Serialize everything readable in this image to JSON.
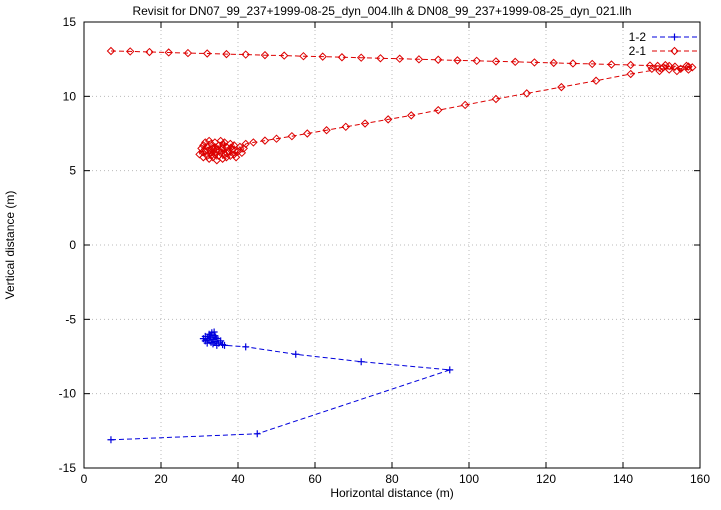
{
  "chart_data": {
    "type": "scatter",
    "title": "Revisit for DN07_99_237+1999-08-25_dyn_004.llh & DN08_99_237+1999-08-25_dyn_021.llh",
    "xlabel": "Horizontal distance (m)",
    "ylabel": "Vertical distance (m)",
    "xlim": [
      0,
      160
    ],
    "ylim": [
      -15,
      15
    ],
    "xticks": [
      0,
      20,
      40,
      60,
      80,
      100,
      120,
      140,
      160
    ],
    "yticks": [
      -15,
      -10,
      -5,
      0,
      5,
      10,
      15
    ],
    "grid": true,
    "grid_color": "#bbbbbb",
    "border_color": "#000000",
    "legend_position": "top-right",
    "series": [
      {
        "name": "1-2",
        "color": "#0000dd",
        "marker": "plus",
        "line_style": "dashed",
        "points": [
          [
            7,
            -13.1
          ],
          [
            45,
            -12.7
          ],
          [
            95,
            -8.4
          ],
          [
            72,
            -7.85
          ],
          [
            55,
            -7.35
          ],
          [
            42,
            -6.85
          ],
          [
            36.5,
            -6.75
          ],
          [
            36,
            -6.7
          ],
          [
            35.5,
            -6.45
          ],
          [
            35,
            -6.6
          ],
          [
            34.5,
            -6.3
          ],
          [
            34.5,
            -6.75
          ],
          [
            34,
            -6.5
          ],
          [
            34,
            -6.1
          ],
          [
            33.8,
            -5.85
          ],
          [
            33.5,
            -6.65
          ],
          [
            33.5,
            -6.35
          ],
          [
            33.2,
            -5.9
          ],
          [
            33,
            -6.2
          ],
          [
            33,
            -6.55
          ],
          [
            32.8,
            -6.05
          ],
          [
            32.5,
            -6.4
          ],
          [
            32.5,
            -6.0
          ],
          [
            32,
            -6.3
          ],
          [
            32,
            -6.6
          ],
          [
            31.5,
            -6.15
          ],
          [
            31.5,
            -6.45
          ],
          [
            31,
            -6.3
          ],
          [
            34.2,
            -6.2
          ]
        ]
      },
      {
        "name": "2-1",
        "color": "#dd0000",
        "marker": "diamond",
        "line_style": "dashed",
        "points": [
          [
            7,
            13.05
          ],
          [
            12,
            13.02
          ],
          [
            17,
            12.98
          ],
          [
            22,
            12.95
          ],
          [
            27,
            12.91
          ],
          [
            32,
            12.88
          ],
          [
            37,
            12.84
          ],
          [
            42,
            12.81
          ],
          [
            47,
            12.77
          ],
          [
            52,
            12.74
          ],
          [
            57,
            12.7
          ],
          [
            62,
            12.67
          ],
          [
            67,
            12.63
          ],
          [
            72,
            12.6
          ],
          [
            77,
            12.56
          ],
          [
            82,
            12.53
          ],
          [
            87,
            12.49
          ],
          [
            92,
            12.46
          ],
          [
            97,
            12.42
          ],
          [
            102,
            12.39
          ],
          [
            107,
            12.35
          ],
          [
            112,
            12.32
          ],
          [
            117,
            12.28
          ],
          [
            122,
            12.25
          ],
          [
            127,
            12.21
          ],
          [
            132,
            12.18
          ],
          [
            137,
            12.14
          ],
          [
            142,
            12.11
          ],
          [
            147,
            12.07
          ],
          [
            152,
            12.04
          ],
          [
            157,
            12.0
          ],
          [
            158,
            11.95
          ],
          [
            156.5,
            12.05
          ],
          [
            155,
            11.85
          ],
          [
            153.5,
            12.0
          ],
          [
            152,
            11.8
          ],
          [
            150.5,
            11.95
          ],
          [
            149,
            12.05
          ],
          [
            147.5,
            11.85
          ],
          [
            149.5,
            11.7
          ],
          [
            151,
            12.1
          ],
          [
            154,
            11.7
          ],
          [
            157,
            11.8
          ],
          [
            150,
            11.85
          ],
          [
            142,
            11.5
          ],
          [
            133,
            11.05
          ],
          [
            124,
            10.62
          ],
          [
            115,
            10.2
          ],
          [
            107,
            9.82
          ],
          [
            99,
            9.42
          ],
          [
            92,
            9.07
          ],
          [
            85,
            8.72
          ],
          [
            79,
            8.45
          ],
          [
            73,
            8.17
          ],
          [
            68,
            7.95
          ],
          [
            63,
            7.72
          ],
          [
            58,
            7.5
          ],
          [
            54,
            7.32
          ],
          [
            50,
            7.15
          ],
          [
            47,
            7.02
          ],
          [
            44,
            6.9
          ],
          [
            42,
            6.8
          ],
          [
            41.5,
            6.5
          ],
          [
            41,
            6.2
          ],
          [
            40.5,
            6.6
          ],
          [
            40,
            6.3
          ],
          [
            39.5,
            5.9
          ],
          [
            39.2,
            6.35
          ],
          [
            39,
            6.7
          ],
          [
            39,
            6.1
          ],
          [
            38.5,
            6.4
          ],
          [
            38.2,
            6.55
          ],
          [
            38,
            6.0
          ],
          [
            38,
            6.8
          ],
          [
            37.5,
            6.3
          ],
          [
            37.2,
            6.15
          ],
          [
            37,
            5.9
          ],
          [
            37,
            6.6
          ],
          [
            36.5,
            6.1
          ],
          [
            36.5,
            6.9
          ],
          [
            36.2,
            6.75
          ],
          [
            36,
            5.8
          ],
          [
            36,
            6.5
          ],
          [
            35.5,
            6.2
          ],
          [
            35.5,
            7.0
          ],
          [
            35.2,
            6.35
          ],
          [
            35,
            6.0
          ],
          [
            35,
            6.7
          ],
          [
            34.5,
            5.7
          ],
          [
            34.5,
            6.4
          ],
          [
            34.2,
            6.55
          ],
          [
            34,
            6.1
          ],
          [
            34,
            6.9
          ],
          [
            33.5,
            5.9
          ],
          [
            33.5,
            6.5
          ],
          [
            33.2,
            6.05
          ],
          [
            33,
            6.2
          ],
          [
            33,
            6.8
          ],
          [
            32.8,
            6.35
          ],
          [
            32.5,
            5.8
          ],
          [
            32.5,
            7.0
          ],
          [
            32,
            6.0
          ],
          [
            32,
            6.6
          ],
          [
            31.5,
            6.3
          ],
          [
            31.5,
            6.9
          ],
          [
            31,
            5.9
          ],
          [
            31,
            6.7
          ],
          [
            30.8,
            6.25
          ],
          [
            30.5,
            6.5
          ],
          [
            30,
            6.1
          ]
        ]
      }
    ]
  }
}
